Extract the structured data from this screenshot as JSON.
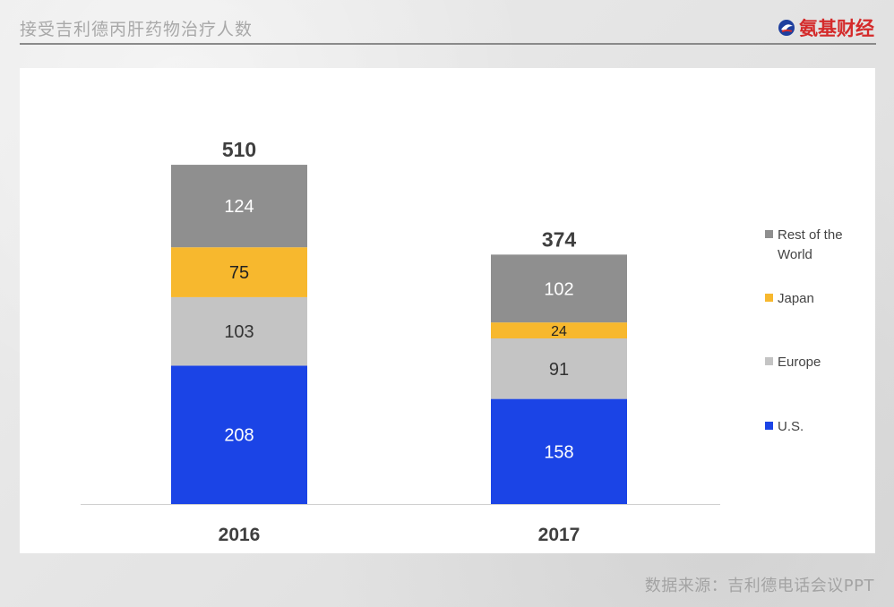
{
  "header": {
    "title": "接受吉利德丙肝药物治疗人数",
    "logo_text": "氨基财经"
  },
  "footer": {
    "source": "数据来源：吉利德电话会议PPT"
  },
  "chart_data": {
    "type": "bar",
    "stacked": true,
    "categories": [
      "2016",
      "2017"
    ],
    "totals": [
      510,
      374
    ],
    "series": [
      {
        "name": "U.S.",
        "values": [
          208,
          158
        ],
        "color": "#1b44e6",
        "label_color": "#ffffff"
      },
      {
        "name": "Europe",
        "values": [
          103,
          91
        ],
        "color": "#c4c4c4",
        "label_color": "#333333"
      },
      {
        "name": "Japan",
        "values": [
          75,
          24
        ],
        "color": "#f7b82e",
        "label_color": "#222222"
      },
      {
        "name": "Rest of the World",
        "values": [
          124,
          102
        ],
        "color": "#8f8f8f",
        "label_color": "#ffffff"
      }
    ],
    "legend_order": [
      "Rest of the World",
      "Japan",
      "Europe",
      "U.S."
    ],
    "legend_placement": "right",
    "grid": false,
    "title": "",
    "xlabel": "",
    "ylabel": ""
  }
}
